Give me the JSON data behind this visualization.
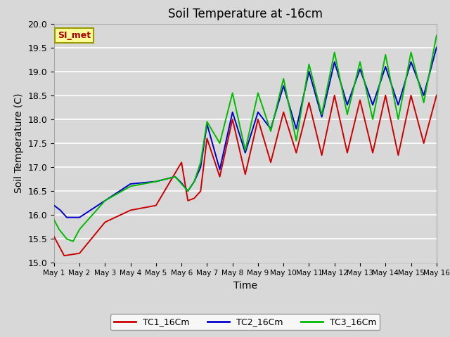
{
  "title": "Soil Temperature at -16cm",
  "xlabel": "Time",
  "ylabel": "Soil Temperature (C)",
  "ylim": [
    15.0,
    20.0
  ],
  "xlim": [
    0,
    15
  ],
  "bg_color": "#d8d8d8",
  "grid_color": "#ffffff",
  "legend_label": "SI_met",
  "series": {
    "TC1_16Cm": {
      "color": "#cc0000",
      "x": [
        0,
        0.4,
        1.0,
        2.0,
        3.0,
        4.0,
        5.0,
        5.25,
        5.5,
        5.75,
        6.0,
        6.5,
        7.0,
        7.5,
        8.0,
        8.5,
        9.0,
        9.5,
        10.0,
        10.5,
        11.0,
        11.5,
        12.0,
        12.5,
        13.0,
        13.5,
        14.0,
        14.5,
        15.0
      ],
      "y": [
        15.55,
        15.15,
        15.2,
        15.85,
        16.1,
        16.2,
        17.1,
        16.3,
        16.35,
        16.5,
        17.6,
        16.8,
        18.0,
        16.85,
        18.0,
        17.1,
        18.15,
        17.3,
        18.35,
        17.25,
        18.5,
        17.3,
        18.4,
        17.3,
        18.5,
        17.25,
        18.5,
        17.5,
        18.5
      ]
    },
    "TC2_16Cm": {
      "color": "#0000cc",
      "x": [
        0,
        0.25,
        0.5,
        1.0,
        2.0,
        3.0,
        4.0,
        4.75,
        5.0,
        5.25,
        5.5,
        5.75,
        6.0,
        6.5,
        7.0,
        7.5,
        8.0,
        8.5,
        9.0,
        9.5,
        10.0,
        10.5,
        11.0,
        11.5,
        12.0,
        12.5,
        13.0,
        13.5,
        14.0,
        14.5,
        15.0
      ],
      "y": [
        16.2,
        16.1,
        15.95,
        15.95,
        16.3,
        16.65,
        16.7,
        16.8,
        16.67,
        16.5,
        16.7,
        17.0,
        17.9,
        16.95,
        18.15,
        17.3,
        18.15,
        17.8,
        18.7,
        17.8,
        19.0,
        18.05,
        19.2,
        18.3,
        19.05,
        18.3,
        19.1,
        18.3,
        19.2,
        18.5,
        19.5
      ]
    },
    "TC3_16Cm": {
      "color": "#00bb00",
      "x": [
        0,
        0.2,
        0.5,
        0.75,
        1.0,
        2.0,
        3.0,
        4.0,
        4.75,
        5.0,
        5.25,
        5.5,
        5.75,
        6.0,
        6.5,
        7.0,
        7.5,
        8.0,
        8.5,
        9.0,
        9.5,
        10.0,
        10.5,
        11.0,
        11.5,
        12.0,
        12.5,
        13.0,
        13.5,
        14.0,
        14.5,
        15.0
      ],
      "y": [
        15.9,
        15.7,
        15.5,
        15.45,
        15.7,
        16.3,
        16.6,
        16.7,
        16.8,
        16.65,
        16.5,
        16.7,
        17.1,
        17.95,
        17.5,
        18.55,
        17.35,
        18.55,
        17.75,
        18.85,
        17.55,
        19.15,
        18.1,
        19.4,
        18.1,
        19.2,
        18.0,
        19.35,
        18.0,
        19.4,
        18.35,
        19.75
      ]
    }
  },
  "xtick_labels": [
    "May 1",
    "May 2",
    "May 3",
    "May 4",
    "May 5",
    "May 6",
    "May 7",
    "May 8",
    "May 9",
    "May 10",
    "May 11",
    "May 12",
    "May 13",
    "May 14",
    "May 15",
    "May 16"
  ],
  "xtick_positions": [
    0,
    1,
    2,
    3,
    4,
    5,
    6,
    7,
    8,
    9,
    10,
    11,
    12,
    13,
    14,
    15
  ],
  "ytick_positions": [
    15.0,
    15.5,
    16.0,
    16.5,
    17.0,
    17.5,
    18.0,
    18.5,
    19.0,
    19.5,
    20.0
  ],
  "ytick_labels": [
    "15.0",
    "15.5",
    "16.0",
    "16.5",
    "17.0",
    "17.5",
    "18.0",
    "18.5",
    "19.0",
    "19.5",
    "20.0"
  ]
}
